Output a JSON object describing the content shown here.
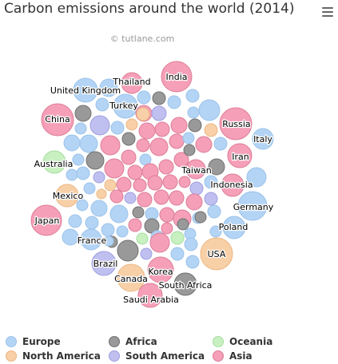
{
  "title": "Carbon emissions around the world (2014)",
  "credit": "© tutlane.com",
  "menu_icon": "hamburger-menu-icon",
  "chart_data": {
    "type": "packed-bubble",
    "title": "Carbon emissions around the world (2014)",
    "legend_position": "bottom",
    "series": [
      {
        "name": "Europe",
        "color": "#b3d4f5",
        "stroke": "#9cc3ea"
      },
      {
        "name": "Africa",
        "color": "#999999",
        "stroke": "#707070"
      },
      {
        "name": "Oceania",
        "color": "#c8f0c0",
        "stroke": "#a6dea0"
      },
      {
        "name": "North America",
        "color": "#f8d0a8",
        "stroke": "#ecb682"
      },
      {
        "name": "South America",
        "color": "#c0c0f0",
        "stroke": "#9e9ee0"
      },
      {
        "name": "Asia",
        "color": "#f5a0b8",
        "stroke": "#dd7c98"
      }
    ],
    "labeled_points": [
      {
        "name": "India",
        "series": "Asia"
      },
      {
        "name": "Thailand",
        "series": "Asia"
      },
      {
        "name": "United Kingdom",
        "series": "Europe"
      },
      {
        "name": "Turkey",
        "series": "Europe"
      },
      {
        "name": "China",
        "series": "Asia"
      },
      {
        "name": "Russia",
        "series": "Europe"
      },
      {
        "name": "Italy",
        "series": "Europe"
      },
      {
        "name": "Iran",
        "series": "Asia"
      },
      {
        "name": "Australia",
        "series": "Oceania"
      },
      {
        "name": "Taiwan",
        "series": "Asia"
      },
      {
        "name": "Indonesia",
        "series": "Asia"
      },
      {
        "name": "Mexico",
        "series": "North America"
      },
      {
        "name": "Germany",
        "series": "Europe"
      },
      {
        "name": "Japan",
        "series": "Asia"
      },
      {
        "name": "Poland",
        "series": "Europe"
      },
      {
        "name": "France",
        "series": "Europe"
      },
      {
        "name": "USA",
        "series": "North America"
      },
      {
        "name": "Brazil",
        "series": "South America"
      },
      {
        "name": "Korea",
        "series": "Asia"
      },
      {
        "name": "Canada",
        "series": "North America"
      },
      {
        "name": "South Africa",
        "series": "Africa"
      },
      {
        "name": "Saudi Arabia",
        "series": "Asia"
      }
    ]
  }
}
